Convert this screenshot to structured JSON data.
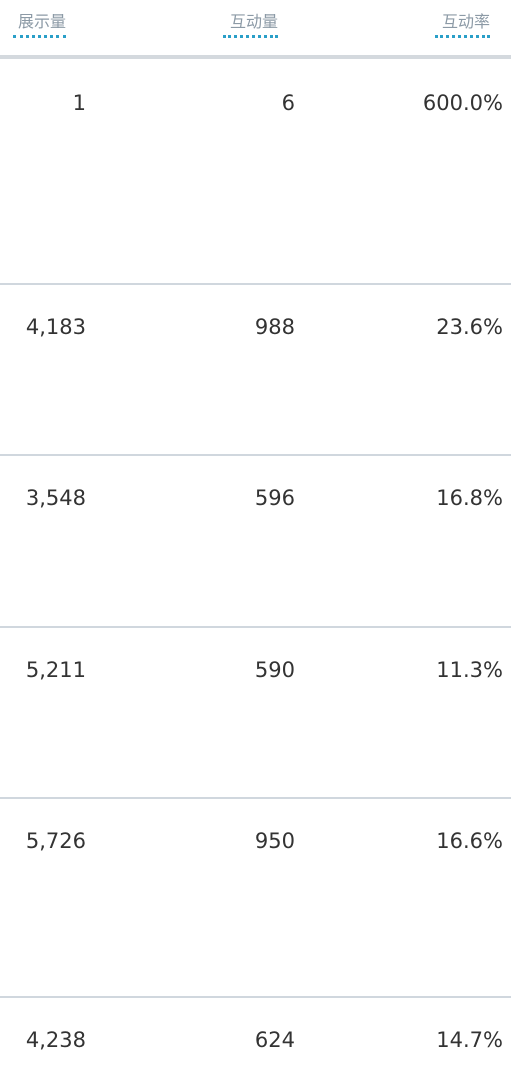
{
  "header": {
    "impressions": "展示量",
    "interactions": "互动量",
    "interaction_rate": "互动率"
  },
  "rows": [
    {
      "impressions": "1",
      "interactions": "6",
      "interaction_rate": "600.0%"
    },
    {
      "impressions": "4,183",
      "interactions": "988",
      "interaction_rate": "23.6%"
    },
    {
      "impressions": "3,548",
      "interactions": "596",
      "interaction_rate": "16.8%"
    },
    {
      "impressions": "5,211",
      "interactions": "590",
      "interaction_rate": "11.3%"
    },
    {
      "impressions": "5,726",
      "interactions": "950",
      "interaction_rate": "16.6%"
    },
    {
      "impressions": "4,238",
      "interactions": "624",
      "interaction_rate": "14.7%"
    }
  ]
}
